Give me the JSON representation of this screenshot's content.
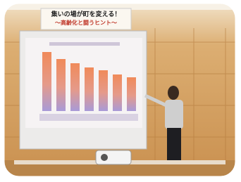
{
  "banner": {
    "title": "集いの場が町を変える！",
    "subtitle": "～高齢化と闘うヒント～"
  }
}
